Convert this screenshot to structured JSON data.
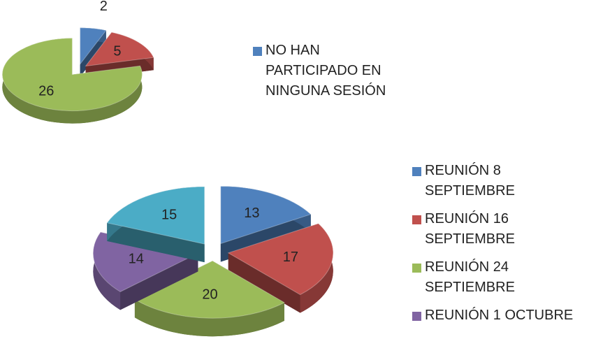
{
  "chart_data": [
    {
      "type": "pie",
      "categories": [
        "NO HAN PARTICIPADO EN NINGUNA SESIÓN",
        null,
        null
      ],
      "values": [
        2,
        5,
        26
      ],
      "colors": [
        "#4f81bd",
        "#c0504d",
        "#9bbb59"
      ]
    },
    {
      "type": "pie",
      "categories": [
        "REUNIÓN 8 SEPTIEMBRE",
        "REUNIÓN 16 SEPTIEMBRE",
        "REUNIÓN 24 SEPTIEMBRE",
        "REUNIÓN 1 OCTUBRE",
        null
      ],
      "values": [
        13,
        17,
        20,
        14,
        15
      ],
      "colors": [
        "#4f81bd",
        "#c0504d",
        "#9bbb59",
        "#8064a2",
        "#4bacc6"
      ]
    }
  ]
}
